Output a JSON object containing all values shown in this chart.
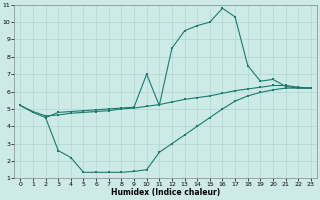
{
  "xlabel": "Humidex (Indice chaleur)",
  "background_color": "#ceeae6",
  "grid_color": "#afd8d3",
  "line_color": "#1a7a6e",
  "xlim": [
    -0.5,
    23.5
  ],
  "ylim": [
    1,
    11
  ],
  "xticks": [
    0,
    1,
    2,
    3,
    4,
    5,
    6,
    7,
    8,
    9,
    10,
    11,
    12,
    13,
    14,
    15,
    16,
    17,
    18,
    19,
    20,
    21,
    22,
    23
  ],
  "yticks": [
    1,
    2,
    3,
    4,
    5,
    6,
    7,
    8,
    9,
    10,
    11
  ],
  "curve1_x": [
    0,
    1,
    2,
    3,
    4,
    5,
    6,
    7,
    8,
    9,
    10,
    11,
    12,
    13,
    14,
    15,
    16,
    17,
    18,
    19,
    20,
    21,
    22,
    23
  ],
  "curve1_y": [
    5.2,
    4.8,
    4.5,
    4.8,
    4.85,
    4.9,
    4.95,
    5.0,
    5.05,
    5.1,
    7.0,
    5.2,
    8.5,
    9.5,
    9.8,
    10.0,
    10.8,
    10.3,
    7.5,
    6.6,
    6.7,
    6.3,
    6.2,
    6.2
  ],
  "curve2_x": [
    0,
    1,
    2,
    3,
    4,
    5,
    6,
    7,
    8,
    9,
    10,
    11,
    12,
    13,
    14,
    15,
    16,
    17,
    18,
    19,
    20,
    21,
    22,
    23
  ],
  "curve2_y": [
    5.2,
    4.85,
    4.6,
    4.65,
    4.75,
    4.8,
    4.85,
    4.9,
    5.0,
    5.05,
    5.15,
    5.25,
    5.4,
    5.55,
    5.65,
    5.75,
    5.9,
    6.05,
    6.15,
    6.25,
    6.35,
    6.35,
    6.25,
    6.2
  ],
  "curve3_x": [
    2,
    3,
    4,
    5,
    6,
    7,
    8,
    9,
    10,
    11,
    12,
    13,
    14,
    15,
    16,
    17,
    18,
    19,
    20,
    21,
    22,
    23
  ],
  "curve3_y": [
    4.5,
    2.6,
    2.2,
    1.35,
    1.35,
    1.35,
    1.35,
    1.4,
    1.5,
    2.5,
    3.0,
    3.5,
    4.0,
    4.5,
    5.0,
    5.45,
    5.75,
    5.95,
    6.1,
    6.2,
    6.2,
    6.2
  ]
}
